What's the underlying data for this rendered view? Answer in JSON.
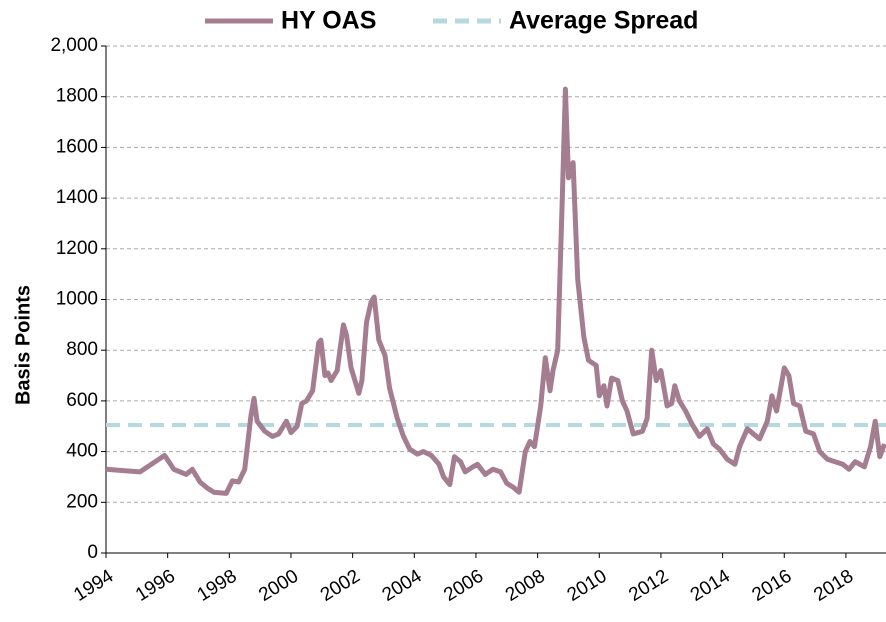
{
  "chart_data": {
    "type": "line",
    "y_label": "Basis Points",
    "xlim": [
      1994,
      2019.3
    ],
    "xticks": [
      1994,
      1996,
      1998,
      2000,
      2002,
      2004,
      2006,
      2008,
      2010,
      2012,
      2014,
      2016,
      2018
    ],
    "ylim": [
      0,
      2000
    ],
    "yticks": [
      0,
      200,
      400,
      600,
      800,
      1000,
      1200,
      1400,
      1600,
      1800,
      {
        "value": 2000,
        "label": "2,000"
      }
    ],
    "grid": true,
    "legend": "top",
    "series": [
      {
        "name": "HY OAS",
        "color": "#a57d91",
        "x": [
          1994.0,
          1995.1,
          1995.9,
          1996.2,
          1996.6,
          1996.8,
          1997.05,
          1997.3,
          1997.5,
          1997.9,
          1998.1,
          1998.3,
          1998.5,
          1998.7,
          1998.8,
          1998.9,
          1999.15,
          1999.4,
          1999.6,
          1999.85,
          2000.0,
          2000.2,
          2000.35,
          2000.5,
          2000.7,
          2000.9,
          2000.97,
          2001.1,
          2001.2,
          2001.3,
          2001.5,
          2001.7,
          2001.8,
          2001.95,
          2002.2,
          2002.3,
          2002.45,
          2002.6,
          2002.7,
          2002.85,
          2003.05,
          2003.2,
          2003.45,
          2003.65,
          2003.85,
          2004.1,
          2004.3,
          2004.55,
          2004.8,
          2004.95,
          2005.15,
          2005.3,
          2005.5,
          2005.65,
          2005.9,
          2006.05,
          2006.3,
          2006.55,
          2006.8,
          2007.0,
          2007.2,
          2007.4,
          2007.6,
          2007.75,
          2007.9,
          2008.1,
          2008.25,
          2008.4,
          2008.5,
          2008.65,
          2008.8,
          2008.9,
          2009.0,
          2009.15,
          2009.3,
          2009.5,
          2009.65,
          2009.9,
          2010.0,
          2010.15,
          2010.25,
          2010.4,
          2010.6,
          2010.75,
          2010.9,
          2011.1,
          2011.4,
          2011.55,
          2011.7,
          2011.85,
          2012.0,
          2012.2,
          2012.35,
          2012.45,
          2012.6,
          2012.8,
          2013.0,
          2013.25,
          2013.5,
          2013.7,
          2013.9,
          2014.15,
          2014.4,
          2014.55,
          2014.8,
          2015.0,
          2015.2,
          2015.45,
          2015.6,
          2015.75,
          2016.0,
          2016.15,
          2016.3,
          2016.5,
          2016.7,
          2016.95,
          2017.15,
          2017.4,
          2017.65,
          2017.9,
          2018.1,
          2018.3,
          2018.6,
          2018.8,
          2018.95,
          2019.1,
          2019.25
        ],
        "values": [
          330,
          320,
          385,
          330,
          310,
          330,
          280,
          255,
          240,
          235,
          285,
          280,
          330,
          540,
          610,
          520,
          480,
          460,
          470,
          520,
          475,
          500,
          590,
          600,
          640,
          830,
          840,
          700,
          710,
          680,
          720,
          900,
          860,
          730,
          630,
          680,
          910,
          990,
          1010,
          840,
          780,
          650,
          530,
          460,
          410,
          390,
          400,
          385,
          350,
          300,
          270,
          380,
          360,
          320,
          340,
          350,
          310,
          330,
          320,
          275,
          260,
          240,
          400,
          440,
          420,
          580,
          770,
          640,
          720,
          800,
          1400,
          1830,
          1480,
          1540,
          1080,
          850,
          760,
          740,
          620,
          660,
          580,
          690,
          680,
          600,
          560,
          470,
          480,
          530,
          800,
          680,
          720,
          580,
          590,
          660,
          600,
          560,
          510,
          460,
          490,
          430,
          410,
          370,
          350,
          420,
          490,
          470,
          450,
          520,
          620,
          560,
          730,
          700,
          590,
          580,
          480,
          470,
          400,
          370,
          360,
          350,
          330,
          360,
          340,
          420,
          520,
          380,
          430
        ]
      },
      {
        "name": "Average Spread",
        "color": "#b4dadf",
        "dash": true,
        "value": 505
      }
    ]
  }
}
